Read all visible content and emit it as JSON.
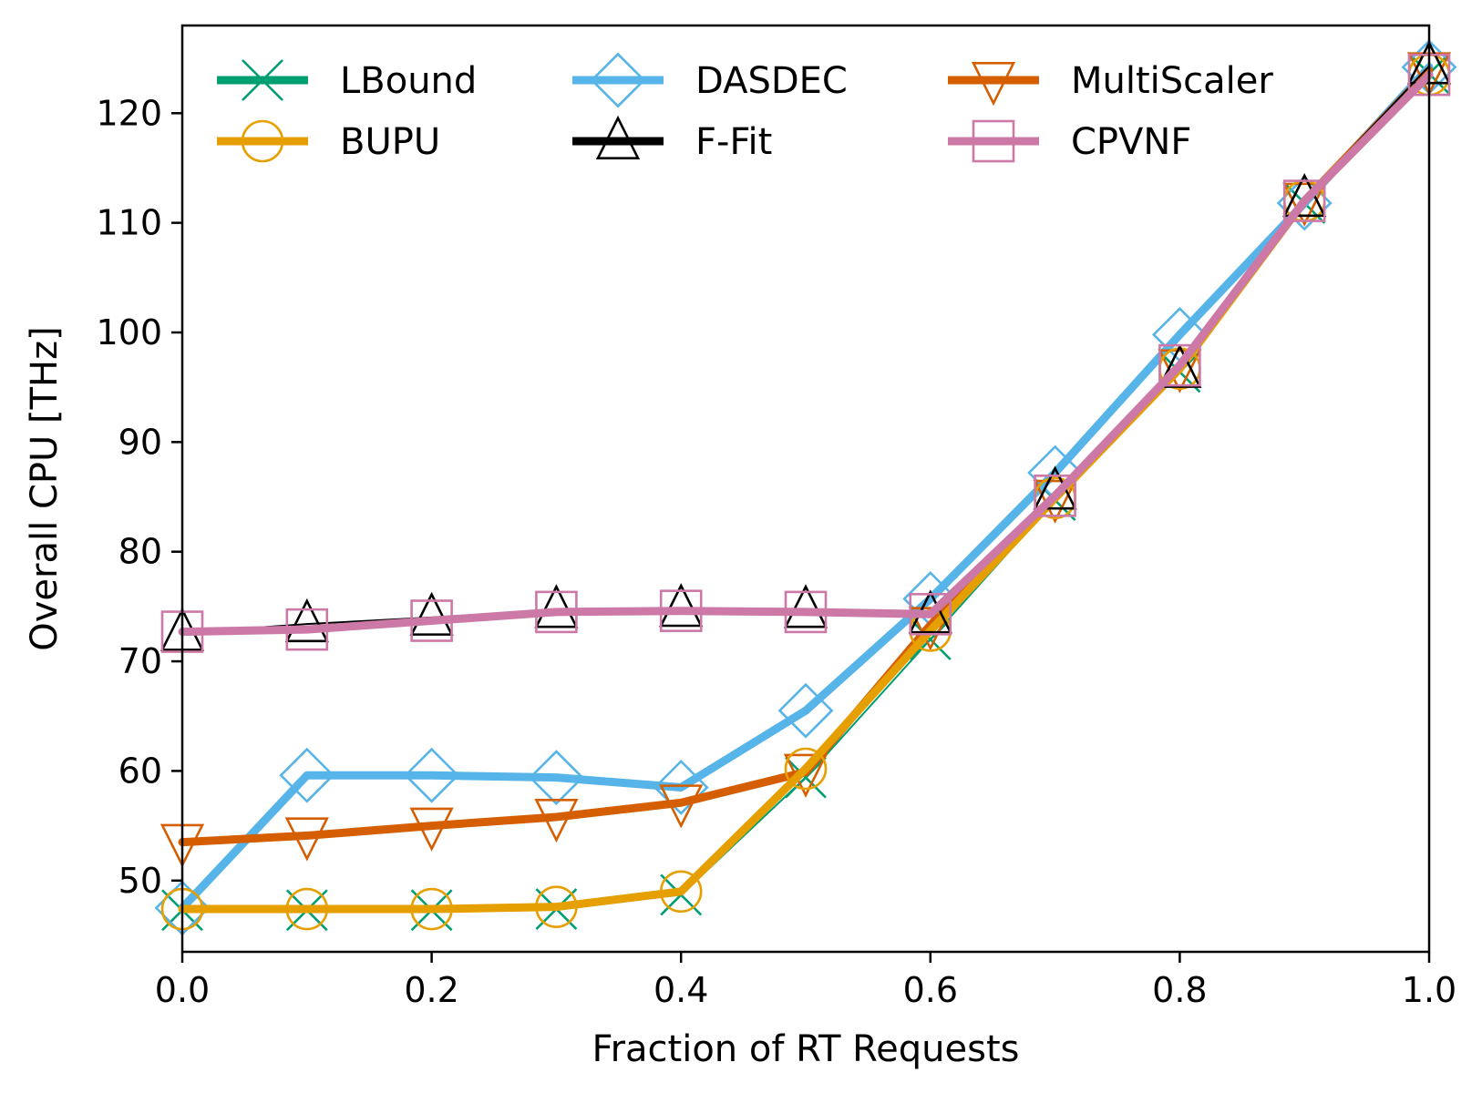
{
  "chart_data": {
    "type": "line",
    "title": "",
    "xlabel": "Fraction of RT Requests",
    "ylabel": "Overall CPU [THz]",
    "xlim": [
      0.0,
      1.0
    ],
    "ylim": [
      43.5,
      128.0
    ],
    "xticks": [
      "0.0",
      "0.2",
      "0.4",
      "0.6",
      "0.8",
      "1.0"
    ],
    "xtick_values": [
      0.0,
      0.2,
      0.4,
      0.6,
      0.8,
      1.0
    ],
    "yticks": [
      "50",
      "60",
      "70",
      "80",
      "90",
      "100",
      "110",
      "120"
    ],
    "ytick_values": [
      50,
      60,
      70,
      80,
      90,
      100,
      110,
      120
    ],
    "grid": false,
    "legend_position": "top-left",
    "x": [
      0.0,
      0.1,
      0.2,
      0.3,
      0.4,
      0.5,
      0.6,
      0.7,
      0.8,
      0.9,
      1.0
    ],
    "series": [
      {
        "name": "LBound",
        "color": "#009e73",
        "marker": "x-icon",
        "line_width": "thin",
        "values": [
          47.3,
          47.3,
          47.3,
          47.4,
          48.7,
          59.4,
          72.0,
          84.7,
          96.4,
          111.8,
          123.6
        ]
      },
      {
        "name": "DASDEC",
        "color": "#56b4e9",
        "marker": "diamond-icon",
        "line_width": "thick",
        "values": [
          47.5,
          59.6,
          59.6,
          59.4,
          58.5,
          65.5,
          75.7,
          87.2,
          99.8,
          111.8,
          124.2
        ]
      },
      {
        "name": "MultiScaler",
        "color": "#d55e00",
        "marker": "triangle-down-icon",
        "line_width": "thick",
        "values": [
          53.5,
          54.1,
          55.0,
          55.8,
          57.1,
          59.9,
          73.3,
          84.9,
          96.8,
          112.0,
          123.9
        ]
      },
      {
        "name": "BUPU",
        "color": "#e69f00",
        "marker": "circle-icon",
        "line_width": "thick",
        "values": [
          47.4,
          47.4,
          47.4,
          47.6,
          49.0,
          60.2,
          72.8,
          84.9,
          96.7,
          112.0,
          123.5
        ]
      },
      {
        "name": "F-Fit",
        "color": "#000000",
        "marker": "triangle-up-icon",
        "line_width": "thin",
        "values": [
          72.6,
          73.4,
          74.0,
          74.7,
          74.8,
          74.7,
          74.2,
          85.5,
          96.6,
          112.2,
          124.3
        ]
      },
      {
        "name": "CPVNF",
        "color": "#cc79a7",
        "marker": "square-icon",
        "line_width": "thick",
        "values": [
          72.7,
          72.9,
          73.7,
          74.5,
          74.6,
          74.5,
          74.3,
          85.1,
          97.0,
          112.0,
          123.5
        ]
      }
    ],
    "legend_rows": [
      [
        "LBound",
        "DASDEC",
        "MultiScaler"
      ],
      [
        "BUPU",
        "F-Fit",
        "CPVNF"
      ]
    ]
  }
}
